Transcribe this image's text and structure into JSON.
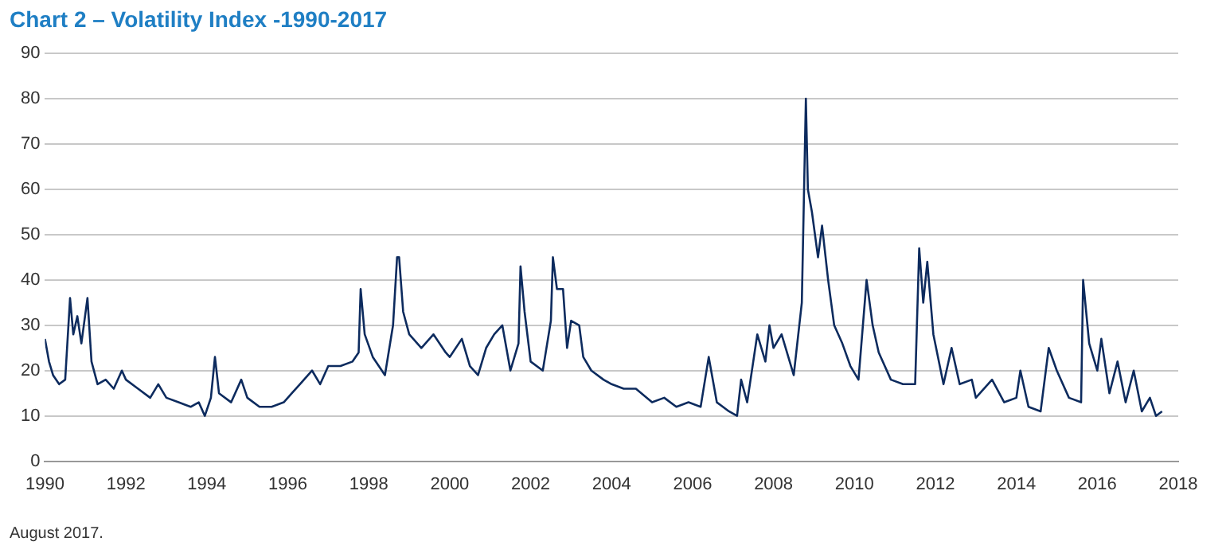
{
  "chart_data": {
    "type": "line",
    "title": "Chart 2 – Volatility Index -1990-2017",
    "annotations": [
      "August 2017."
    ],
    "x": [
      1990.0,
      1990.1,
      1990.2,
      1990.35,
      1990.5,
      1990.58,
      1990.62,
      1990.7,
      1990.8,
      1990.9,
      1991.05,
      1991.15,
      1991.3,
      1991.5,
      1991.7,
      1991.9,
      1992.0,
      1992.3,
      1992.6,
      1992.8,
      1993.0,
      1993.3,
      1993.6,
      1993.8,
      1993.95,
      1994.1,
      1994.2,
      1994.3,
      1994.6,
      1994.85,
      1995.0,
      1995.3,
      1995.6,
      1995.9,
      1996.1,
      1996.3,
      1996.6,
      1996.8,
      1997.0,
      1997.3,
      1997.6,
      1997.75,
      1997.8,
      1997.9,
      1998.1,
      1998.4,
      1998.6,
      1998.7,
      1998.75,
      1998.85,
      1999.0,
      1999.3,
      1999.6,
      1999.9,
      2000.0,
      2000.3,
      2000.5,
      2000.7,
      2000.9,
      2001.1,
      2001.3,
      2001.5,
      2001.7,
      2001.75,
      2001.85,
      2002.0,
      2002.3,
      2002.5,
      2002.55,
      2002.65,
      2002.8,
      2002.9,
      2003.0,
      2003.2,
      2003.3,
      2003.5,
      2003.8,
      2004.0,
      2004.3,
      2004.6,
      2005.0,
      2005.3,
      2005.6,
      2005.9,
      2006.2,
      2006.4,
      2006.6,
      2006.9,
      2007.1,
      2007.2,
      2007.35,
      2007.6,
      2007.8,
      2007.9,
      2008.0,
      2008.2,
      2008.5,
      2008.7,
      2008.8,
      2008.85,
      2008.95,
      2009.1,
      2009.2,
      2009.35,
      2009.5,
      2009.7,
      2009.9,
      2010.1,
      2010.3,
      2010.45,
      2010.6,
      2010.9,
      2011.2,
      2011.5,
      2011.6,
      2011.7,
      2011.8,
      2011.95,
      2012.2,
      2012.4,
      2012.6,
      2012.9,
      2013.0,
      2013.4,
      2013.7,
      2014.0,
      2014.1,
      2014.3,
      2014.6,
      2014.8,
      2015.0,
      2015.3,
      2015.6,
      2015.65,
      2015.8,
      2016.0,
      2016.1,
      2016.3,
      2016.5,
      2016.7,
      2016.9,
      2017.1,
      2017.3,
      2017.45,
      2017.6
    ],
    "series": [
      {
        "color": "#0d2b5e",
        "values": [
          27,
          22,
          19,
          17,
          18,
          30,
          36,
          28,
          32,
          26,
          36,
          22,
          17,
          18,
          16,
          20,
          18,
          16,
          14,
          17,
          14,
          13,
          12,
          13,
          10,
          14,
          23,
          15,
          13,
          18,
          14,
          12,
          12,
          13,
          15,
          17,
          20,
          17,
          21,
          21,
          22,
          24,
          38,
          28,
          23,
          19,
          30,
          45,
          45,
          33,
          28,
          25,
          28,
          24,
          23,
          27,
          21,
          19,
          25,
          28,
          30,
          20,
          26,
          43,
          33,
          22,
          20,
          31,
          45,
          38,
          38,
          25,
          31,
          30,
          23,
          20,
          18,
          17,
          16,
          16,
          13,
          14,
          12,
          13,
          12,
          23,
          13,
          11,
          10,
          18,
          13,
          28,
          22,
          30,
          25,
          28,
          19,
          35,
          80,
          60,
          55,
          45,
          52,
          40,
          30,
          26,
          21,
          18,
          40,
          30,
          24,
          18,
          17,
          17,
          47,
          35,
          44,
          28,
          17,
          25,
          17,
          18,
          14,
          18,
          13,
          14,
          20,
          12,
          11,
          25,
          20,
          14,
          13,
          40,
          26,
          20,
          27,
          15,
          22,
          13,
          20,
          11,
          14,
          10,
          11
        ]
      }
    ],
    "xlim": [
      1990,
      2018
    ],
    "xticks": [
      1990,
      1992,
      1994,
      1996,
      1998,
      2000,
      2002,
      2004,
      2006,
      2008,
      2010,
      2012,
      2014,
      2016,
      2018
    ],
    "ylim": [
      0,
      90
    ],
    "yticks": [
      0,
      10,
      20,
      30,
      40,
      50,
      60,
      70,
      80,
      90
    ],
    "grid": "y",
    "legend": false,
    "marker": "none",
    "line_style": "solid"
  }
}
